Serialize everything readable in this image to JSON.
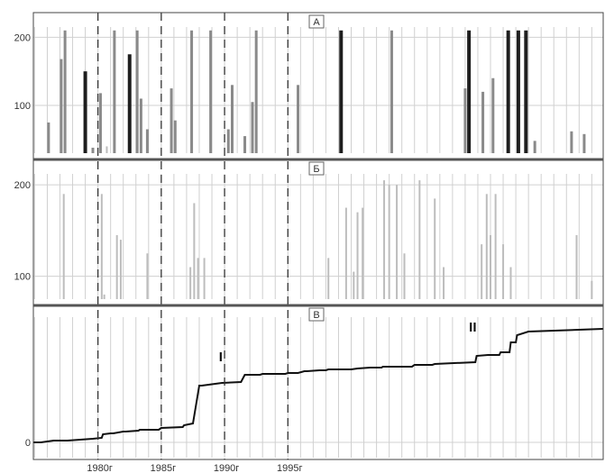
{
  "chart_data": [
    {
      "type": "bar",
      "panel_label": "A",
      "ylim": [
        30,
        215
      ],
      "yticks": [
        100,
        200
      ],
      "grid": true,
      "bars": [
        {
          "x": 1976.1,
          "value": 75,
          "shade": "#8a8a8a"
        },
        {
          "x": 1977.1,
          "value": 168,
          "shade": "#8a8a8a"
        },
        {
          "x": 1977.4,
          "value": 210,
          "shade": "#8a8a8a"
        },
        {
          "x": 1979.0,
          "value": 150,
          "shade": "#1e1e1e"
        },
        {
          "x": 1979.6,
          "value": 38,
          "shade": "#8a8a8a"
        },
        {
          "x": 1980.2,
          "value": 118,
          "shade": "#8a8a8a"
        },
        {
          "x": 1980.7,
          "value": 40,
          "shade": "#bdbdbd"
        },
        {
          "x": 1981.3,
          "value": 210,
          "shade": "#8a8a8a"
        },
        {
          "x": 1982.5,
          "value": 175,
          "shade": "#1e1e1e"
        },
        {
          "x": 1983.1,
          "value": 210,
          "shade": "#8a8a8a"
        },
        {
          "x": 1983.4,
          "value": 110,
          "shade": "#8a8a8a"
        },
        {
          "x": 1983.9,
          "value": 65,
          "shade": "#8a8a8a"
        },
        {
          "x": 1985.8,
          "value": 125,
          "shade": "#8a8a8a"
        },
        {
          "x": 1986.1,
          "value": 78,
          "shade": "#8a8a8a"
        },
        {
          "x": 1987.4,
          "value": 210,
          "shade": "#8a8a8a"
        },
        {
          "x": 1988.9,
          "value": 210,
          "shade": "#8a8a8a"
        },
        {
          "x": 1990.3,
          "value": 65,
          "shade": "#8a8a8a"
        },
        {
          "x": 1990.6,
          "value": 130,
          "shade": "#8a8a8a"
        },
        {
          "x": 1991.6,
          "value": 55,
          "shade": "#8a8a8a"
        },
        {
          "x": 1992.2,
          "value": 105,
          "shade": "#8a8a8a"
        },
        {
          "x": 1992.5,
          "value": 210,
          "shade": "#8a8a8a"
        },
        {
          "x": 1995.8,
          "value": 130,
          "shade": "#8a8a8a"
        },
        {
          "x": 1999.2,
          "value": 210,
          "shade": "#1e1e1e"
        },
        {
          "x": 2003.2,
          "value": 210,
          "shade": "#8a8a8a"
        },
        {
          "x": 2009.0,
          "value": 125,
          "shade": "#8a8a8a"
        },
        {
          "x": 2009.3,
          "value": 210,
          "shade": "#1e1e1e"
        },
        {
          "x": 2010.4,
          "value": 120,
          "shade": "#8a8a8a"
        },
        {
          "x": 2011.2,
          "value": 140,
          "shade": "#8a8a8a"
        },
        {
          "x": 2012.4,
          "value": 210,
          "shade": "#1e1e1e"
        },
        {
          "x": 2013.2,
          "value": 210,
          "shade": "#1e1e1e"
        },
        {
          "x": 2013.8,
          "value": 210,
          "shade": "#1e1e1e"
        },
        {
          "x": 2014.5,
          "value": 48,
          "shade": "#8a8a8a"
        },
        {
          "x": 2017.4,
          "value": 62,
          "shade": "#8a8a8a"
        },
        {
          "x": 2018.4,
          "value": 58,
          "shade": "#8a8a8a"
        }
      ]
    },
    {
      "type": "bar",
      "panel_label": "Б",
      "ylim": [
        75,
        212
      ],
      "yticks": [
        100,
        200
      ],
      "grid": true,
      "bars": [
        {
          "x": 1977.3,
          "value": 190,
          "shade": "#bdbdbd"
        },
        {
          "x": 1980.3,
          "value": 190,
          "shade": "#bdbdbd"
        },
        {
          "x": 1980.5,
          "value": 80,
          "shade": "#bdbdbd"
        },
        {
          "x": 1981.5,
          "value": 145,
          "shade": "#bdbdbd"
        },
        {
          "x": 1981.8,
          "value": 140,
          "shade": "#bdbdbd"
        },
        {
          "x": 1983.9,
          "value": 125,
          "shade": "#bdbdbd"
        },
        {
          "x": 1987.3,
          "value": 110,
          "shade": "#bdbdbd"
        },
        {
          "x": 1987.6,
          "value": 180,
          "shade": "#bdbdbd"
        },
        {
          "x": 1987.9,
          "value": 120,
          "shade": "#bdbdbd"
        },
        {
          "x": 1988.4,
          "value": 120,
          "shade": "#bdbdbd"
        },
        {
          "x": 1998.2,
          "value": 120,
          "shade": "#bdbdbd"
        },
        {
          "x": 1999.6,
          "value": 175,
          "shade": "#bdbdbd"
        },
        {
          "x": 2000.2,
          "value": 105,
          "shade": "#bdbdbd"
        },
        {
          "x": 2000.5,
          "value": 170,
          "shade": "#bdbdbd"
        },
        {
          "x": 2000.9,
          "value": 175,
          "shade": "#bdbdbd"
        },
        {
          "x": 2002.6,
          "value": 205,
          "shade": "#bdbdbd"
        },
        {
          "x": 2003.0,
          "value": 200,
          "shade": "#bdbdbd"
        },
        {
          "x": 2003.6,
          "value": 200,
          "shade": "#bdbdbd"
        },
        {
          "x": 2004.2,
          "value": 125,
          "shade": "#bdbdbd"
        },
        {
          "x": 2005.4,
          "value": 205,
          "shade": "#bdbdbd"
        },
        {
          "x": 2006.6,
          "value": 185,
          "shade": "#bdbdbd"
        },
        {
          "x": 2007.3,
          "value": 110,
          "shade": "#bdbdbd"
        },
        {
          "x": 2010.7,
          "value": 190,
          "shade": "#bdbdbd"
        },
        {
          "x": 2010.3,
          "value": 135,
          "shade": "#bdbdbd"
        },
        {
          "x": 2011.0,
          "value": 145,
          "shade": "#bdbdbd"
        },
        {
          "x": 2011.4,
          "value": 190,
          "shade": "#bdbdbd"
        },
        {
          "x": 2012.0,
          "value": 135,
          "shade": "#bdbdbd"
        },
        {
          "x": 2012.6,
          "value": 110,
          "shade": "#bdbdbd"
        },
        {
          "x": 2017.8,
          "value": 145,
          "shade": "#bdbdbd"
        },
        {
          "x": 2019.0,
          "value": 95,
          "shade": "#bdbdbd"
        }
      ]
    },
    {
      "type": "line",
      "panel_label": "В",
      "ylim": [
        -5,
        160
      ],
      "yticks": [
        0
      ],
      "grid": true,
      "x": [
        1974.9,
        1975.5,
        1976.5,
        1977.6,
        1978.6,
        1979.6,
        1980.3,
        1980.4,
        1981.0,
        1981.2,
        1982.0,
        1982.2,
        1983.2,
        1983.3,
        1984.8,
        1985.0,
        1986.7,
        1986.8,
        1987.5,
        1988.0,
        1988.2,
        1989.8,
        1991.3,
        1991.6,
        1992.8,
        1993.0,
        1994.8,
        1995.0,
        1995.8,
        1996.3,
        1996.5,
        1997.5,
        1998.0,
        1998.2,
        2000.0,
        2000.5,
        2001.5,
        2002.4,
        2002.5,
        2003.6,
        2004.8,
        2005.0,
        2006.4,
        2006.6,
        2009.8,
        2009.9,
        2010.8,
        2011.7,
        2011.8,
        2012.5,
        2012.6,
        2013.0,
        2013.1,
        2014.0,
        2019.9
      ],
      "values": [
        0,
        0,
        2,
        2,
        3,
        4,
        5,
        9,
        10,
        10,
        12,
        12,
        13,
        14,
        14,
        16,
        17,
        19,
        21,
        63,
        63,
        66,
        67,
        75,
        75,
        76,
        76,
        77,
        77,
        79,
        79,
        80,
        80,
        81,
        81,
        82,
        83,
        83,
        84,
        84,
        84,
        86,
        86,
        87,
        89,
        96,
        97,
        97,
        100,
        100,
        111,
        111,
        119,
        123,
        126
      ],
      "annotations": [
        {
          "text": "I",
          "x": 1989.7,
          "y": 90
        },
        {
          "text": "II",
          "x": 2009.6,
          "y": 124
        }
      ]
    }
  ],
  "x_axis": {
    "xlim": [
      1974.9,
      2019.9
    ],
    "tick_labels": [
      "1980г",
      "1985г",
      "1990г",
      "1995г"
    ],
    "tick_values": [
      1980,
      1985,
      1990,
      1995
    ],
    "dashed_lines": [
      1980,
      1985,
      1990,
      1995
    ]
  },
  "colors": {
    "line": "#111111",
    "grid": "#d0d0d0",
    "dashed": "#333333",
    "frame": "#444444"
  }
}
